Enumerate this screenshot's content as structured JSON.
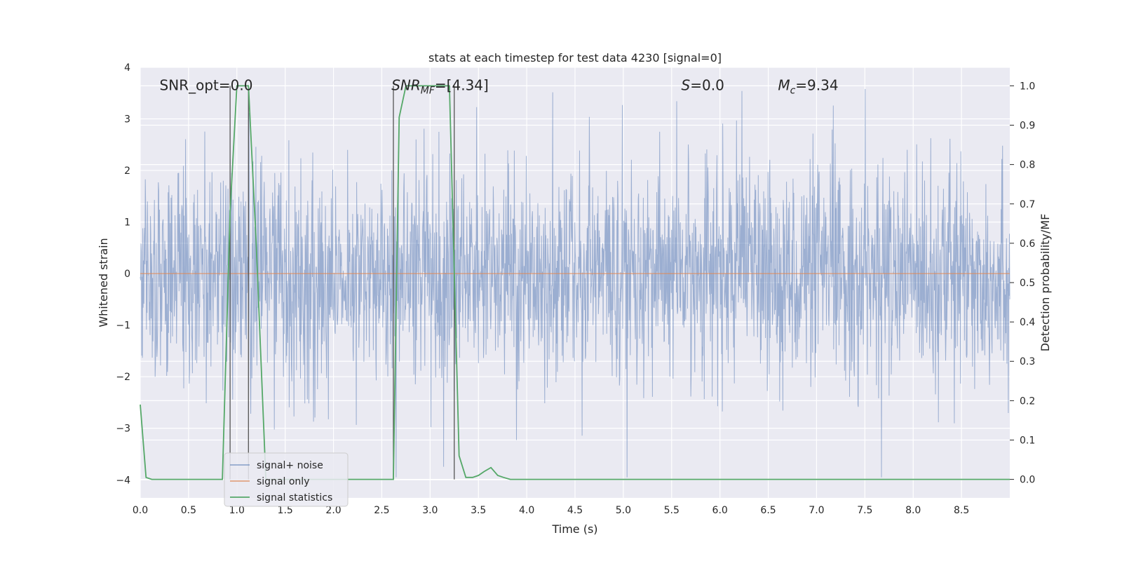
{
  "chart_data": {
    "type": "line",
    "title": "stats at each timestep for test data 4230 [signal=0]",
    "xlabel": "Time (s)",
    "ylabel_left": "Whitened strain",
    "ylabel_right": "Detection probability/MF",
    "xlim": [
      0.0,
      9.0
    ],
    "ylim_left": [
      -4.35,
      4.0
    ],
    "ylim_right": [
      -0.047,
      1.047
    ],
    "x_ticks": [
      "0.0",
      "0.5",
      "1.0",
      "1.5",
      "2.0",
      "2.5",
      "3.0",
      "3.5",
      "4.0",
      "4.5",
      "5.0",
      "5.5",
      "6.0",
      "6.5",
      "7.0",
      "7.5",
      "8.0",
      "8.5"
    ],
    "y_ticks_left": [
      "−4",
      "−3",
      "−2",
      "−1",
      "0",
      "1",
      "2",
      "3",
      "4"
    ],
    "y_ticks_right": [
      "0.0",
      "0.1",
      "0.2",
      "0.3",
      "0.4",
      "0.5",
      "0.6",
      "0.7",
      "0.8",
      "0.9",
      "1.0"
    ],
    "grid": true,
    "legend_position": "lower-left",
    "annotations": [
      {
        "text": "SNR_opt=0.0",
        "x": 0.2,
        "y": 3.65
      },
      {
        "text": "SNR",
        "sub": "MF",
        "rest": "=[4.34]",
        "x": 2.6,
        "y": 3.65
      },
      {
        "text": "S",
        "rest": "=0.0",
        "x": 5.6,
        "y": 3.65
      },
      {
        "text": "M",
        "sub": "c",
        "rest": "=9.34",
        "x": 6.6,
        "y": 3.65
      }
    ],
    "detection_windows": [
      {
        "start": 0.93,
        "end": 1.12
      },
      {
        "start": 2.62,
        "end": 3.25
      }
    ],
    "series": [
      {
        "name": "signal+ noise",
        "axis": "left",
        "color": "#4c72b0",
        "kind": "noise",
        "duration": 9.0,
        "description_values": {
          "typical_abs": 1.3,
          "peak_abs": 3.7
        }
      },
      {
        "name": "signal only",
        "axis": "left",
        "color": "#dd8452",
        "x": [
          0.0,
          9.0
        ],
        "values": [
          0.0,
          0.0
        ]
      },
      {
        "name": "signal statistics",
        "axis": "right",
        "color": "#55a868",
        "x": [
          0.0,
          0.06,
          0.12,
          0.2,
          0.5,
          0.85,
          0.93,
          1.0,
          1.12,
          1.2,
          1.3,
          2.5,
          2.62,
          2.68,
          2.75,
          3.0,
          3.2,
          3.3,
          3.37,
          3.44,
          3.5,
          3.56,
          3.63,
          3.7,
          3.76,
          3.83,
          4.0,
          9.0
        ],
        "values": [
          0.19,
          0.005,
          0.0,
          0.0,
          0.0,
          0.0,
          0.68,
          1.0,
          1.0,
          0.6,
          0.0,
          0.0,
          0.0,
          0.92,
          1.0,
          1.0,
          1.0,
          0.06,
          0.005,
          0.005,
          0.01,
          0.02,
          0.03,
          0.01,
          0.005,
          0.0,
          0.0,
          0.0
        ]
      }
    ]
  }
}
